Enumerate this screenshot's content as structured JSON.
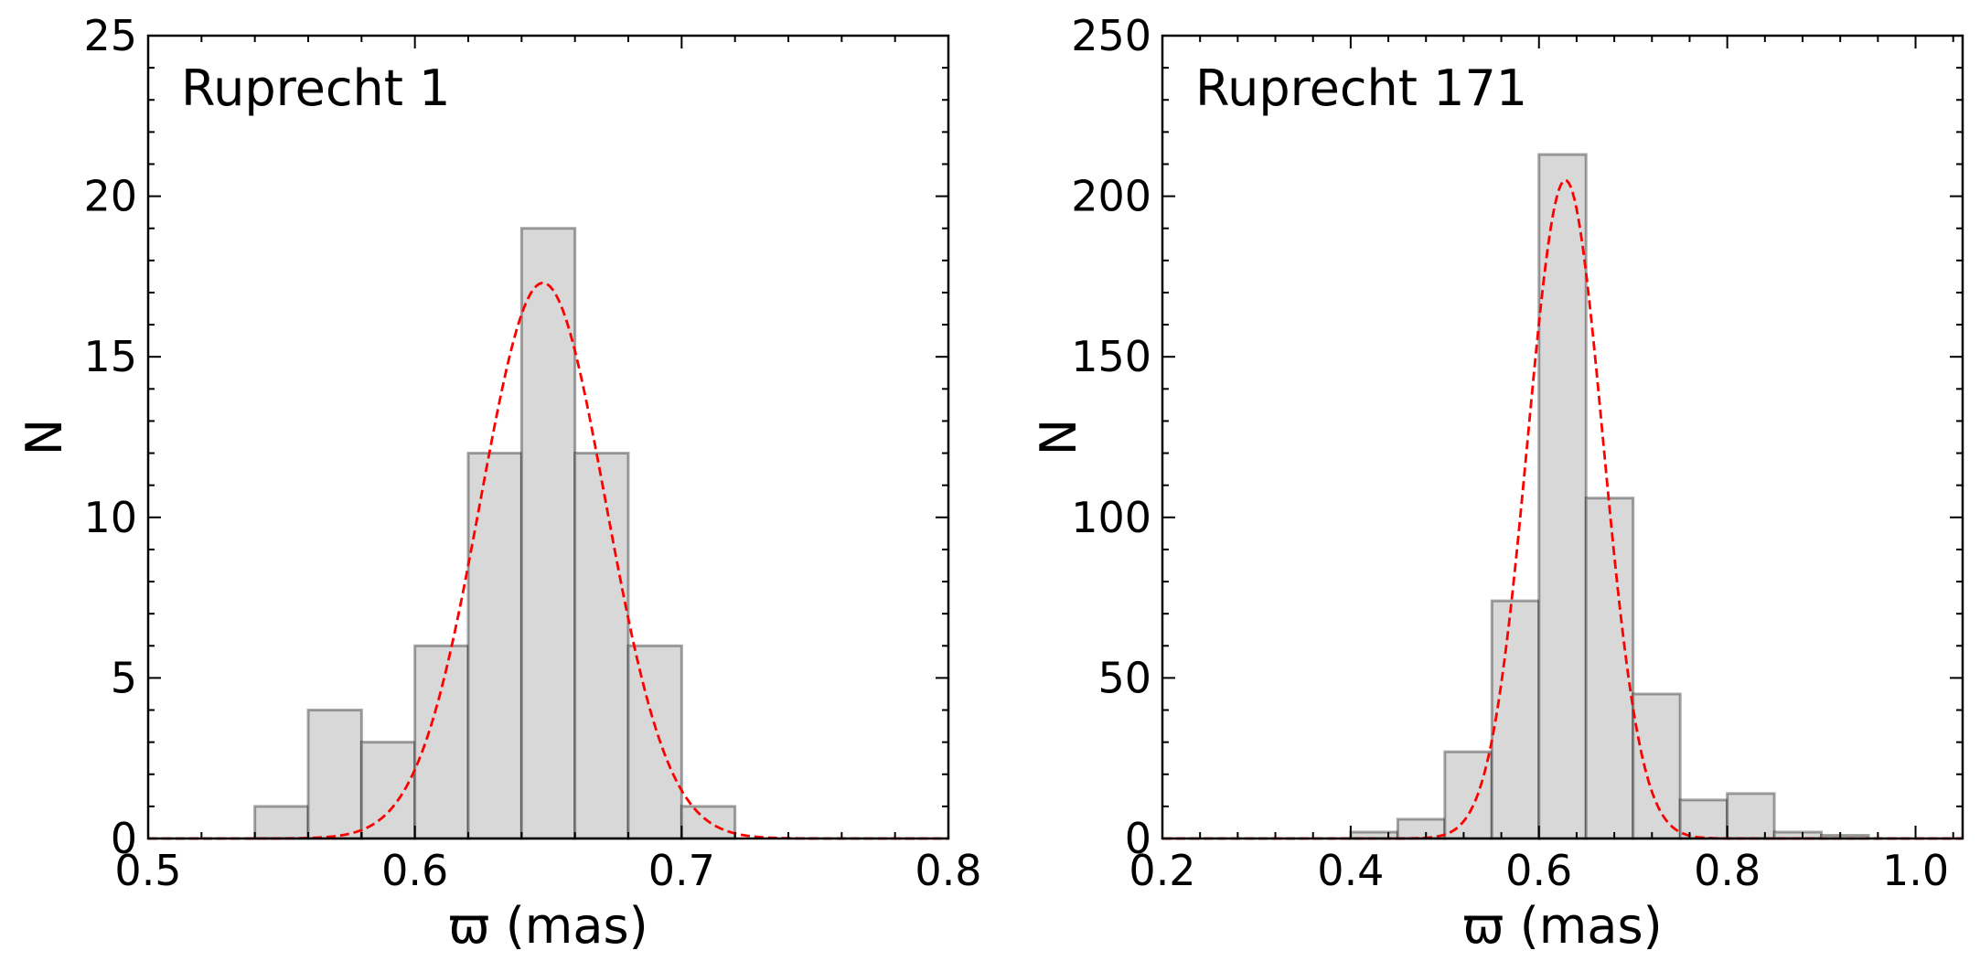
{
  "chart_data": [
    {
      "type": "bar",
      "panel_label": "Ruprecht 1",
      "title": "",
      "xlabel": "ϖ (mas)",
      "ylabel": "N",
      "xlim": [
        0.5,
        0.8
      ],
      "ylim": [
        0,
        25
      ],
      "xticks": [
        0.5,
        0.6,
        0.7,
        0.8
      ],
      "xtick_labels": [
        "0.5",
        "0.6",
        "0.7",
        "0.8"
      ],
      "yticks": [
        0,
        5,
        10,
        15,
        20,
        25
      ],
      "ytick_labels": [
        "0",
        "5",
        "10",
        "15",
        "20",
        "25"
      ],
      "bin_edges": [
        0.54,
        0.56,
        0.58,
        0.6,
        0.62,
        0.64,
        0.66,
        0.68,
        0.7,
        0.72
      ],
      "counts": [
        1,
        4,
        3,
        6,
        12,
        19,
        12,
        6,
        1
      ],
      "fit": {
        "type": "gaussian",
        "mean": 0.648,
        "sigma": 0.0235,
        "amplitude": 17.3,
        "color": "#ff0000",
        "style": "dashed"
      },
      "bar_color": "#d8d8d8",
      "grid": false,
      "legend": "none"
    },
    {
      "type": "bar",
      "panel_label": "Ruprecht 171",
      "title": "",
      "xlabel": "ϖ (mas)",
      "ylabel": "N",
      "xlim": [
        0.2,
        1.05
      ],
      "ylim": [
        0,
        250
      ],
      "xticks": [
        0.2,
        0.4,
        0.6,
        0.8,
        1.0
      ],
      "xtick_labels": [
        "0.2",
        "0.4",
        "0.6",
        "0.8",
        "1.0"
      ],
      "yticks": [
        0,
        50,
        100,
        150,
        200,
        250
      ],
      "ytick_labels": [
        "0",
        "50",
        "100",
        "150",
        "200",
        "250"
      ],
      "bin_edges": [
        0.4,
        0.45,
        0.5,
        0.55,
        0.6,
        0.65,
        0.7,
        0.75,
        0.8,
        0.85,
        0.9,
        0.95
      ],
      "counts": [
        2,
        6,
        27,
        74,
        213,
        106,
        45,
        12,
        14,
        2,
        1
      ],
      "fit": {
        "type": "gaussian",
        "mean": 0.628,
        "sigma": 0.04,
        "amplitude": 205,
        "color": "#ff0000",
        "style": "dashed"
      },
      "bar_color": "#d8d8d8",
      "grid": false,
      "legend": "none"
    }
  ]
}
